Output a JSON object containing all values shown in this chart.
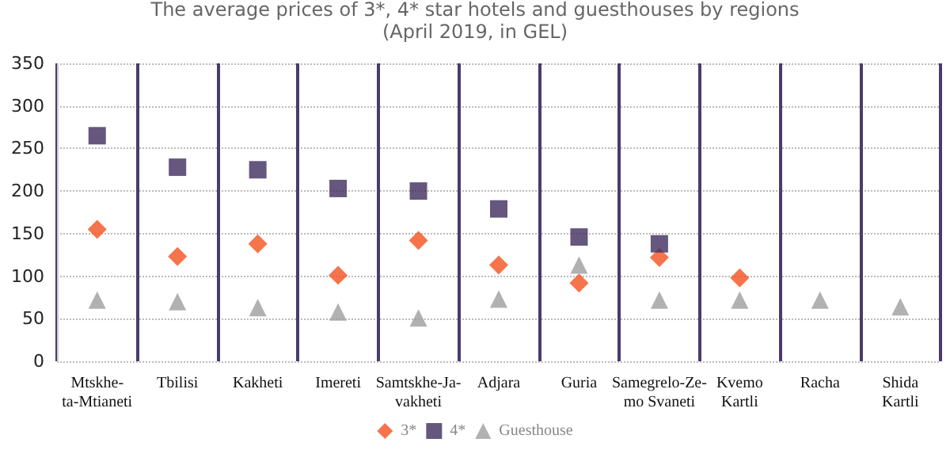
{
  "chart_data": {
    "type": "scatter",
    "title": "The average prices of 3*, 4* star hotels and guesthouses by regions\n(April 2019, in GEL)",
    "categories": [
      "Mtskhe-\nta-Mtianeti",
      "Tbilisi",
      "Kakheti",
      "Imereti",
      "Samtskhe-Ja-\nvakheti",
      "Adjara",
      "Guria",
      "Samegrelo-Ze-\nmo Svaneti",
      "Kvemo\nKartli",
      "Racha",
      "Shida\nKartli"
    ],
    "series": [
      {
        "name": "3*",
        "color": "#f4511e",
        "marker": "diamond",
        "values": [
          155,
          123,
          138,
          101,
          142,
          113,
          92,
          122,
          98,
          null,
          null
        ]
      },
      {
        "name": "4*",
        "color": "#3f2d5c",
        "marker": "square",
        "values": [
          265,
          228,
          225,
          203,
          200,
          179,
          146,
          138,
          null,
          null,
          null
        ]
      },
      {
        "name": "Guesthouse",
        "color": "#9e9e9e",
        "marker": "triangle",
        "values": [
          72,
          70,
          63,
          58,
          51,
          73,
          113,
          72,
          72,
          72,
          64
        ]
      }
    ],
    "ylim": [
      0,
      350
    ],
    "yticks": [
      0,
      50,
      100,
      150,
      200,
      250,
      300,
      350
    ],
    "grid": true,
    "legend": "bottom"
  }
}
